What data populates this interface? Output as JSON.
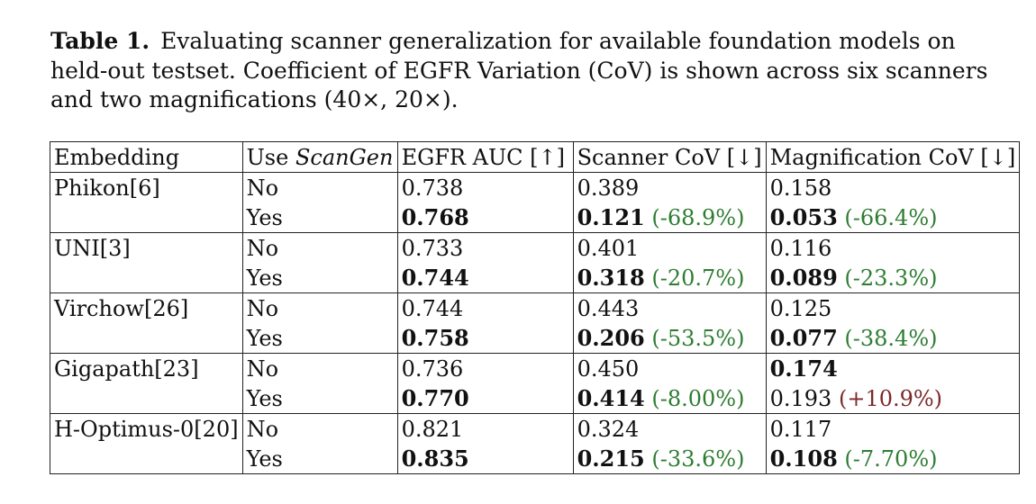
{
  "caption": {
    "label": "Table 1.",
    "text": "Evaluating scanner generalization for available foundation models on held-out testset. Coefficient of EGFR Variation (CoV) is shown across six scanners and two magnifications (40×, 20×)."
  },
  "table": {
    "headers": {
      "embedding": "Embedding",
      "use_prefix": "Use ",
      "use_emph": "ScanGen",
      "auc": "EGFR AUC [↑]",
      "scanner": "Scanner CoV [↓]",
      "magnification": "Magnification CoV [↓]"
    },
    "groups": [
      {
        "model": "Phikon[6]",
        "rows": [
          {
            "use": "No",
            "auc": "0.738",
            "auc_bold": false,
            "scanner": "0.389",
            "scanner_bold": false,
            "scanner_delta": "",
            "mag": "0.158",
            "mag_bold": false,
            "mag_delta": ""
          },
          {
            "use": "Yes",
            "auc": "0.768",
            "auc_bold": true,
            "scanner": "0.121",
            "scanner_bold": true,
            "scanner_delta": "(-68.9%)",
            "mag": "0.053",
            "mag_bold": true,
            "mag_delta": "(-66.4%)"
          }
        ]
      },
      {
        "model": "UNI[3]",
        "rows": [
          {
            "use": "No",
            "auc": "0.733",
            "auc_bold": false,
            "scanner": "0.401",
            "scanner_bold": false,
            "scanner_delta": "",
            "mag": "0.116",
            "mag_bold": false,
            "mag_delta": ""
          },
          {
            "use": "Yes",
            "auc": "0.744",
            "auc_bold": true,
            "scanner": "0.318",
            "scanner_bold": true,
            "scanner_delta": "(-20.7%)",
            "mag": "0.089",
            "mag_bold": true,
            "mag_delta": "(-23.3%)"
          }
        ]
      },
      {
        "model": "Virchow[26]",
        "rows": [
          {
            "use": "No",
            "auc": "0.744",
            "auc_bold": false,
            "scanner": "0.443",
            "scanner_bold": false,
            "scanner_delta": "",
            "mag": "0.125",
            "mag_bold": false,
            "mag_delta": ""
          },
          {
            "use": "Yes",
            "auc": "0.758",
            "auc_bold": true,
            "scanner": "0.206",
            "scanner_bold": true,
            "scanner_delta": "(-53.5%)",
            "mag": "0.077",
            "mag_bold": true,
            "mag_delta": "(-38.4%)"
          }
        ]
      },
      {
        "model": "Gigapath[23]",
        "rows": [
          {
            "use": "No",
            "auc": "0.736",
            "auc_bold": false,
            "scanner": "0.450",
            "scanner_bold": false,
            "scanner_delta": "",
            "mag": "0.174",
            "mag_bold": true,
            "mag_delta": ""
          },
          {
            "use": "Yes",
            "auc": "0.770",
            "auc_bold": true,
            "scanner": "0.414",
            "scanner_bold": true,
            "scanner_delta": "(-8.00%)",
            "mag": "0.193",
            "mag_bold": false,
            "mag_delta": "(+10.9%)"
          }
        ]
      },
      {
        "model": "H-Optimus-0[20]",
        "rows": [
          {
            "use": "No",
            "auc": "0.821",
            "auc_bold": false,
            "scanner": "0.324",
            "scanner_bold": false,
            "scanner_delta": "",
            "mag": "0.117",
            "mag_bold": false,
            "mag_delta": ""
          },
          {
            "use": "Yes",
            "auc": "0.835",
            "auc_bold": true,
            "scanner": "0.215",
            "scanner_bold": true,
            "scanner_delta": "(-33.6%)",
            "mag": "0.108",
            "mag_bold": true,
            "mag_delta": "(-7.70%)"
          }
        ]
      }
    ]
  },
  "colors": {
    "improvement": "#2e7d32",
    "regression": "#7b2a2a"
  }
}
